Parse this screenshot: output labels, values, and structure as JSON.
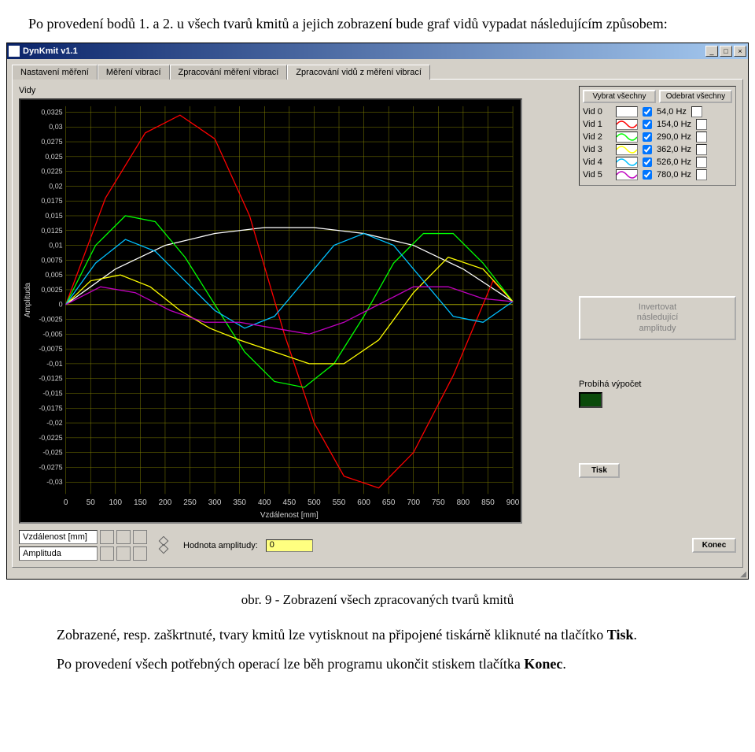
{
  "intro_text": "Po provedení bodů 1. a 2. u všech tvarů kmitů a jejich zobrazení bude graf vidů vypadat následujícím způsobem:",
  "window": {
    "title": "DynKmit v1.1",
    "min": "_",
    "max": "□",
    "close": "×"
  },
  "tabs": [
    {
      "label": "Nastavení měření",
      "active": false
    },
    {
      "label": "Měření vibrací",
      "active": false
    },
    {
      "label": "Zpracování měření vibrací",
      "active": false
    },
    {
      "label": "Zpracování vidů z měření vibrací",
      "active": true
    }
  ],
  "chart": {
    "title": "Vidy",
    "ylabel": "Amplituda",
    "xlabel": "Vzdálenost [mm]",
    "bg": "#000000",
    "grid_color": "#808000",
    "axis_text_color": "#d0d0d0",
    "x_ticks": [
      0,
      50,
      100,
      150,
      200,
      250,
      300,
      350,
      400,
      450,
      500,
      550,
      600,
      650,
      700,
      750,
      800,
      850,
      900
    ],
    "y_ticks": [
      0.0325,
      0.03,
      0.0275,
      0.025,
      0.0225,
      0.02,
      0.0175,
      0.015,
      0.0125,
      0.01,
      0.0075,
      0.005,
      0.0025,
      0,
      -0.0025,
      -0.005,
      -0.0075,
      -0.01,
      -0.0125,
      -0.015,
      -0.0175,
      -0.02,
      -0.0225,
      -0.025,
      -0.0275,
      -0.03
    ],
    "xlim": [
      0,
      900
    ],
    "ylim": [
      -0.032,
      0.0335
    ],
    "series": [
      {
        "color": "#ffffff",
        "points": [
          [
            0,
            0
          ],
          [
            100,
            0.006
          ],
          [
            200,
            0.01
          ],
          [
            300,
            0.012
          ],
          [
            400,
            0.013
          ],
          [
            500,
            0.013
          ],
          [
            600,
            0.012
          ],
          [
            700,
            0.01
          ],
          [
            800,
            0.006
          ],
          [
            900,
            0.0005
          ]
        ]
      },
      {
        "color": "#ff0000",
        "points": [
          [
            0,
            0
          ],
          [
            80,
            0.018
          ],
          [
            160,
            0.029
          ],
          [
            230,
            0.032
          ],
          [
            300,
            0.028
          ],
          [
            370,
            0.015
          ],
          [
            440,
            -0.005
          ],
          [
            500,
            -0.02
          ],
          [
            560,
            -0.029
          ],
          [
            630,
            -0.031
          ],
          [
            700,
            -0.025
          ],
          [
            780,
            -0.012
          ],
          [
            860,
            0.004
          ],
          [
            900,
            0.0005
          ]
        ]
      },
      {
        "color": "#00ff00",
        "points": [
          [
            0,
            0
          ],
          [
            60,
            0.01
          ],
          [
            120,
            0.015
          ],
          [
            180,
            0.014
          ],
          [
            240,
            0.008
          ],
          [
            300,
            0.0
          ],
          [
            360,
            -0.008
          ],
          [
            420,
            -0.013
          ],
          [
            480,
            -0.014
          ],
          [
            540,
            -0.01
          ],
          [
            600,
            -0.002
          ],
          [
            660,
            0.007
          ],
          [
            720,
            0.012
          ],
          [
            780,
            0.012
          ],
          [
            840,
            0.007
          ],
          [
            900,
            0.0005
          ]
        ]
      },
      {
        "color": "#ffff00",
        "points": [
          [
            0,
            0
          ],
          [
            50,
            0.004
          ],
          [
            110,
            0.005
          ],
          [
            170,
            0.003
          ],
          [
            230,
            -0.001
          ],
          [
            290,
            -0.004
          ],
          [
            350,
            -0.006
          ],
          [
            420,
            -0.008
          ],
          [
            490,
            -0.01
          ],
          [
            560,
            -0.01
          ],
          [
            630,
            -0.006
          ],
          [
            700,
            0.002
          ],
          [
            770,
            0.008
          ],
          [
            840,
            0.006
          ],
          [
            900,
            0.0005
          ]
        ]
      },
      {
        "color": "#00c0ff",
        "points": [
          [
            0,
            0
          ],
          [
            60,
            0.007
          ],
          [
            120,
            0.011
          ],
          [
            180,
            0.009
          ],
          [
            240,
            0.004
          ],
          [
            300,
            -0.001
          ],
          [
            360,
            -0.004
          ],
          [
            420,
            -0.002
          ],
          [
            480,
            0.004
          ],
          [
            540,
            0.01
          ],
          [
            600,
            0.012
          ],
          [
            660,
            0.01
          ],
          [
            720,
            0.004
          ],
          [
            780,
            -0.002
          ],
          [
            840,
            -0.003
          ],
          [
            900,
            0.0005
          ]
        ]
      },
      {
        "color": "#c000c0",
        "points": [
          [
            0,
            0
          ],
          [
            70,
            0.003
          ],
          [
            140,
            0.002
          ],
          [
            210,
            -0.001
          ],
          [
            280,
            -0.003
          ],
          [
            350,
            -0.003
          ],
          [
            420,
            -0.004
          ],
          [
            490,
            -0.005
          ],
          [
            560,
            -0.003
          ],
          [
            630,
            0.0
          ],
          [
            700,
            0.003
          ],
          [
            770,
            0.003
          ],
          [
            840,
            0.001
          ],
          [
            900,
            0.0005
          ]
        ]
      }
    ]
  },
  "vid_panel": {
    "select_all": "Vybrat všechny",
    "remove_all": "Odebrat všechny",
    "rows": [
      {
        "label": "Vid 0",
        "hz": "54,0 Hz",
        "color": "#ffffff",
        "checked": true
      },
      {
        "label": "Vid 1",
        "hz": "154,0 Hz",
        "color": "#ff0000",
        "checked": true
      },
      {
        "label": "Vid 2",
        "hz": "290,0 Hz",
        "color": "#00ff00",
        "checked": true
      },
      {
        "label": "Vid 3",
        "hz": "362,0 Hz",
        "color": "#ffff00",
        "checked": true
      },
      {
        "label": "Vid 4",
        "hz": "526,0 Hz",
        "color": "#00c0ff",
        "checked": true
      },
      {
        "label": "Vid 5",
        "hz": "780,0 Hz",
        "color": "#c000c0",
        "checked": true
      }
    ]
  },
  "invert_button": "Invertovat\nnásledující\namplitudy",
  "status": {
    "label": "Probíhá výpočet",
    "led_color": "#0a4a0a"
  },
  "tisk_label": "Tisk",
  "bottom": {
    "x_field": "Vzdálenost [mm]",
    "y_field": "Amplituda",
    "amp_label": "Hodnota amplitudy:",
    "amp_value": "0",
    "konec": "Konec"
  },
  "caption": "obr. 9 -  Zobrazení všech zpracovaných tvarů kmitů",
  "outro_p1_a": "Zobrazené, resp. zaškrtnuté, tvary kmitů lze vytisknout na připojené tiskárně kliknuté na tlačítko ",
  "outro_p1_b": "Tisk",
  "outro_p1_c": ".",
  "outro_p2_a": "Po provedení všech potřebných operací lze běh programu ukončit stiskem tlačítka ",
  "outro_p2_b": "Konec",
  "outro_p2_c": "."
}
